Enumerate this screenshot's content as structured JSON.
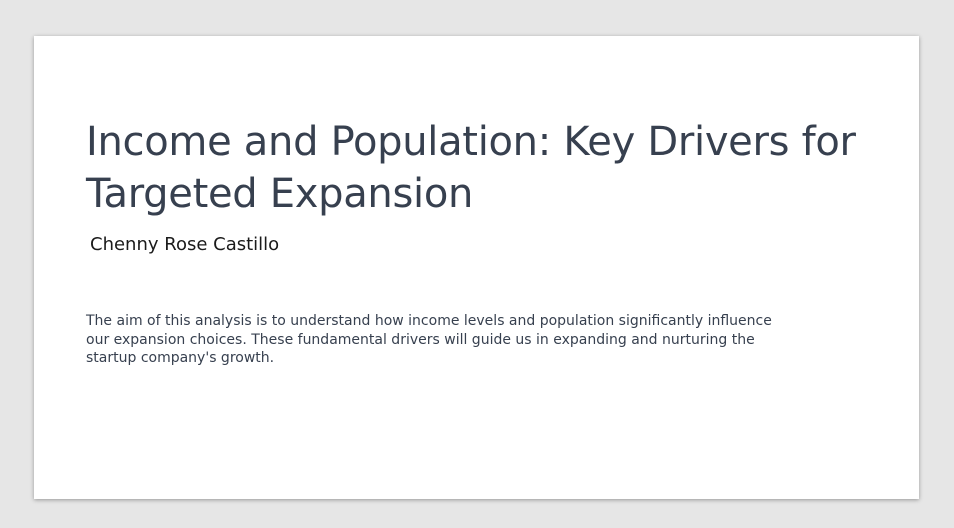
{
  "slide": {
    "title": "Income and Population: Key Drivers for Targeted Expansion",
    "author": "Chenny Rose Castillo",
    "body": "The aim of this analysis is to understand how income levels and population significantly influence our expansion choices. These fundamental drivers will guide us in expanding and nurturing the startup company's growth."
  },
  "colors": {
    "background": "#e6e6e6",
    "slide": "#ffffff",
    "title": "#37404f",
    "author": "#1a1a1a"
  }
}
